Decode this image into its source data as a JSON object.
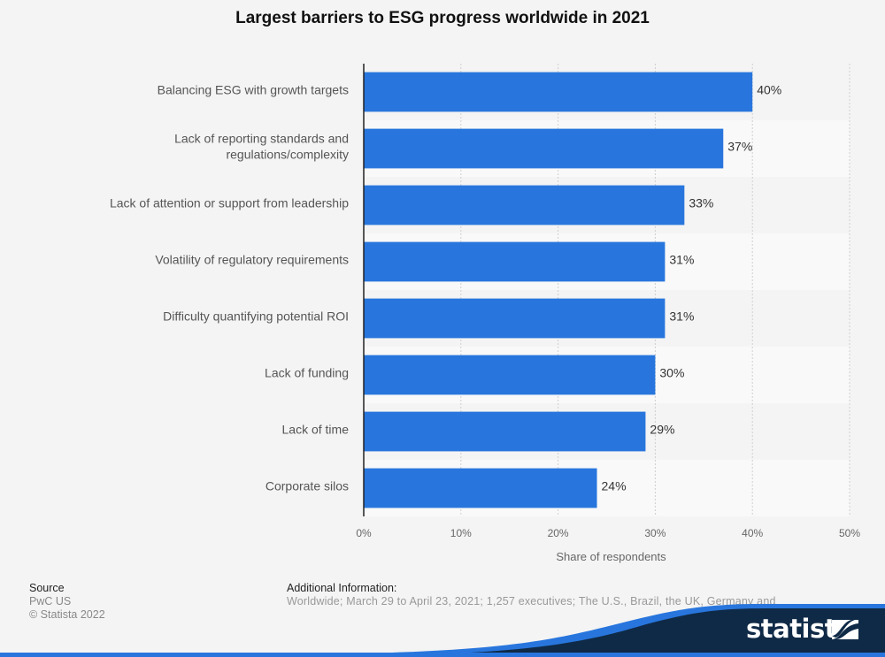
{
  "chart_data": {
    "type": "bar",
    "orientation": "horizontal",
    "title": "Largest barriers to ESG progress worldwide in 2021",
    "categories": [
      "Balancing ESG with growth targets",
      "Lack of reporting standards and regulations/complexity",
      "Lack of attention or support from leadership",
      "Volatility of regulatory requirements",
      "Difficulty quantifying potential ROI",
      "Lack of funding",
      "Lack of time",
      "Corporate silos"
    ],
    "category_lines": [
      [
        "Balancing ESG with growth targets"
      ],
      [
        "Lack of reporting standards and",
        "regulations/complexity"
      ],
      [
        "Lack of attention or support from leadership"
      ],
      [
        "Volatility of regulatory requirements"
      ],
      [
        "Difficulty quantifying potential ROI"
      ],
      [
        "Lack of funding"
      ],
      [
        "Lack of time"
      ],
      [
        "Corporate silos"
      ]
    ],
    "values": [
      40,
      37,
      33,
      31,
      31,
      30,
      29,
      24
    ],
    "value_labels": [
      "40%",
      "37%",
      "33%",
      "31%",
      "31%",
      "30%",
      "29%",
      "24%"
    ],
    "xlabel": "Share of respondents",
    "ylabel": "",
    "xlim": [
      0,
      50
    ],
    "xticks": [
      0,
      10,
      20,
      30,
      40,
      50
    ],
    "xtick_labels": [
      "0%",
      "10%",
      "20%",
      "30%",
      "40%",
      "50%"
    ],
    "grid": true,
    "bar_color": "#2876dd"
  },
  "footer": {
    "source_heading": "Source",
    "source_lines": [
      "PwC US",
      "© Statista 2022"
    ],
    "additional_heading": "Additional Information:",
    "additional_text": "Worldwide; March 29 to April 23, 2021; 1,257 executives; The U.S., Brazil, the UK, Germany and"
  },
  "brand": {
    "logo_text": "statista",
    "dark_color": "#0f2a47",
    "accent_color": "#2876dd"
  }
}
